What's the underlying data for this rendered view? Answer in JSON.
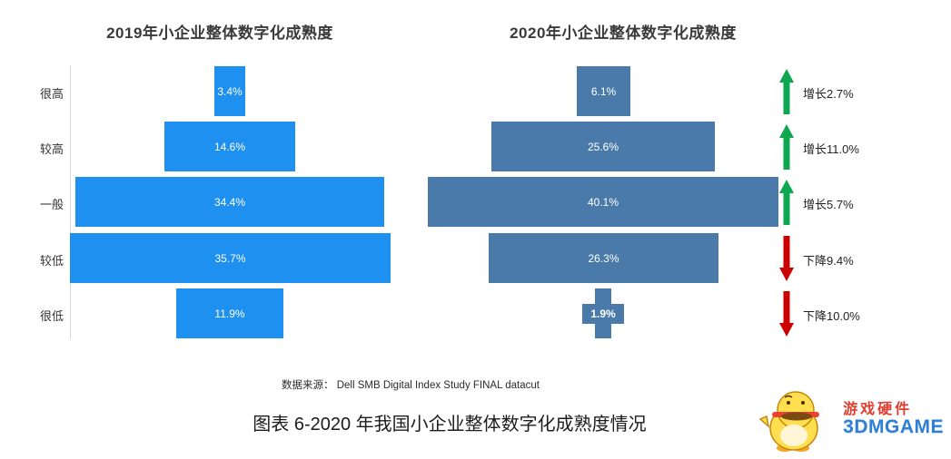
{
  "chart_data": {
    "type": "bar",
    "orientation": "horizontal-funnel",
    "categories": [
      "很高",
      "较高",
      "一般",
      "较低",
      "很低"
    ],
    "series": [
      {
        "name": "2019年小企业整体数字化成熟度",
        "values": [
          3.4,
          14.6,
          34.4,
          35.7,
          11.9
        ],
        "color": "#1e90f0"
      },
      {
        "name": "2020年小企业整体数字化成熟度",
        "values": [
          6.1,
          25.6,
          40.1,
          26.3,
          1.9
        ],
        "color": "#4a7aa9"
      }
    ],
    "value_labels": [
      [
        "3.4%",
        "14.6%",
        "34.4%",
        "35.7%",
        "11.9%"
      ],
      [
        "6.1%",
        "25.6%",
        "40.1%",
        "26.3%",
        "1.9%"
      ]
    ],
    "changes": [
      {
        "label": "增长2.7%",
        "direction": "up",
        "value": 2.7
      },
      {
        "label": "增长11.0%",
        "direction": "up",
        "value": 11.0
      },
      {
        "label": "增长5.7%",
        "direction": "up",
        "value": 5.7
      },
      {
        "label": "下降9.4%",
        "direction": "down",
        "value": 9.4
      },
      {
        "label": "下降10.0%",
        "direction": "down",
        "value": 10.0
      }
    ],
    "value_suffix": "%",
    "grid": false,
    "legend_position": "none"
  },
  "colors": {
    "bar_2019": "#1e90f0",
    "bar_2020": "#4a7aa9",
    "up_arrow": "#0da74f",
    "down_arrow": "#cc0000",
    "axis_line": "#d9d9d9"
  },
  "source": "数据来源： Dell SMB Digital Index Study FINAL datacut",
  "caption": "图表 6-2020 年我国小企业整体数字化成熟度情况",
  "logo": {
    "line1": "游戏硬件",
    "line2": "3DMGAME"
  }
}
